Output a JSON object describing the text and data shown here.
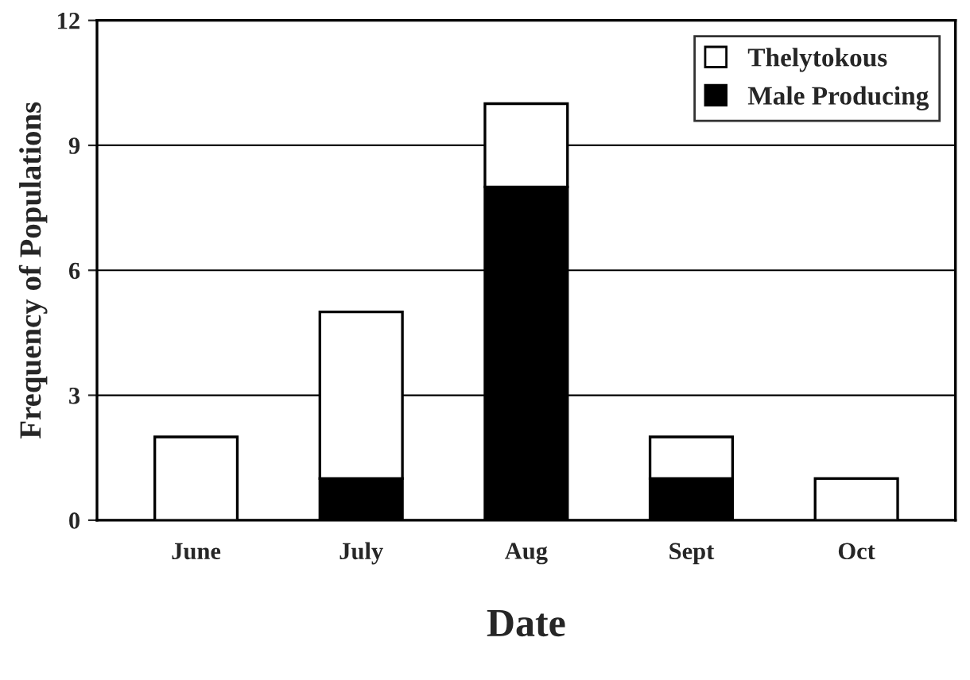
{
  "chart_data": {
    "type": "bar",
    "stacked": true,
    "xlabel": "Date",
    "ylabel": "Frequency of Populations",
    "categories": [
      "June",
      "July",
      "Aug",
      "Sept",
      "Oct"
    ],
    "series": [
      {
        "name": "Male Producing",
        "color": "#000000",
        "values": [
          0,
          1,
          8,
          1,
          0
        ]
      },
      {
        "name": "Thelytokous",
        "color": "#ffffff",
        "values": [
          2,
          4,
          2,
          1,
          1
        ]
      }
    ],
    "ylim": [
      0,
      12
    ],
    "yticks": [
      0,
      3,
      6,
      9,
      12
    ],
    "grid": "y",
    "legend": "top right"
  }
}
